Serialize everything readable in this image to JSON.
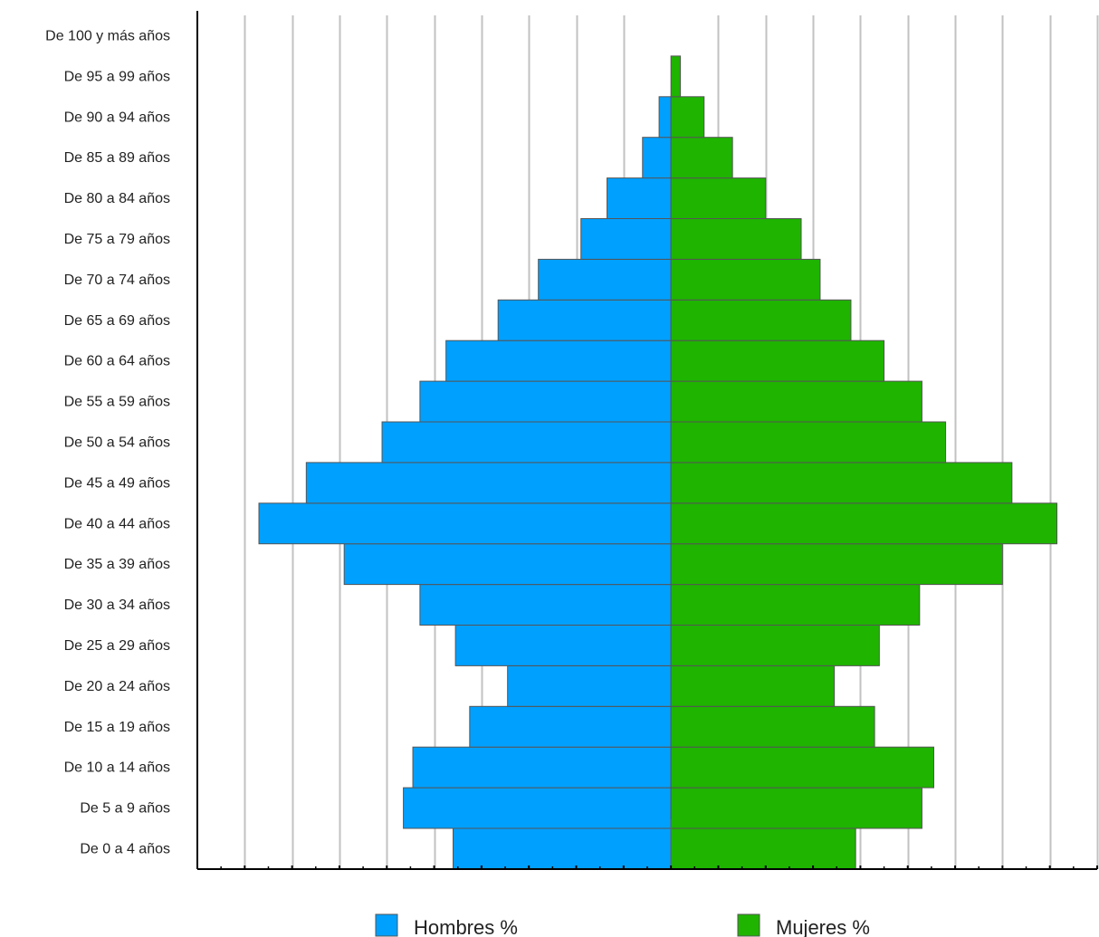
{
  "chart_data": {
    "type": "bar",
    "orientation": "horizontal",
    "subtype": "population-pyramid",
    "categories": [
      "De 0 a 4 años",
      "De 5 a 9 años",
      "De 10 a 14 años",
      "De 15 a 19 años",
      "De 20 a 24 años",
      "De 25 a 29 años",
      "De 30 a 34 años",
      "De 35 a 39 años",
      "De 40 a 44 años",
      "De 45 a 49 años",
      "De 50 a 54 años",
      "De 55 a 59 años",
      "De 60 a 64 años",
      "De 65 a 69 años",
      "De 70 a 74 años",
      "De 75 a 79 años",
      "De 80 a 84 años",
      "De 85 a 89 años",
      "De 90 a 94 años",
      "De 95 a 99 años",
      "De 100 y más años"
    ],
    "series": [
      {
        "name": "Hombres %",
        "color": "#00a0ff",
        "values": [
          4.6,
          5.65,
          5.45,
          4.25,
          3.45,
          4.55,
          5.3,
          6.9,
          8.7,
          7.7,
          6.1,
          5.3,
          4.75,
          3.65,
          2.8,
          1.9,
          1.35,
          0.6,
          0.25,
          0.0,
          0.0
        ]
      },
      {
        "name": "Mujeres %",
        "color": "#1eb400",
        "values": [
          3.9,
          5.3,
          5.55,
          4.3,
          3.45,
          4.4,
          5.25,
          7.0,
          8.15,
          7.2,
          5.8,
          5.3,
          4.5,
          3.8,
          3.15,
          2.75,
          2.0,
          1.3,
          0.7,
          0.2,
          0.0
        ]
      }
    ],
    "xlim": [
      -10,
      9
    ],
    "gridlines": "vertical",
    "legend": "bottom",
    "title": "",
    "xlabel": "",
    "ylabel": ""
  }
}
